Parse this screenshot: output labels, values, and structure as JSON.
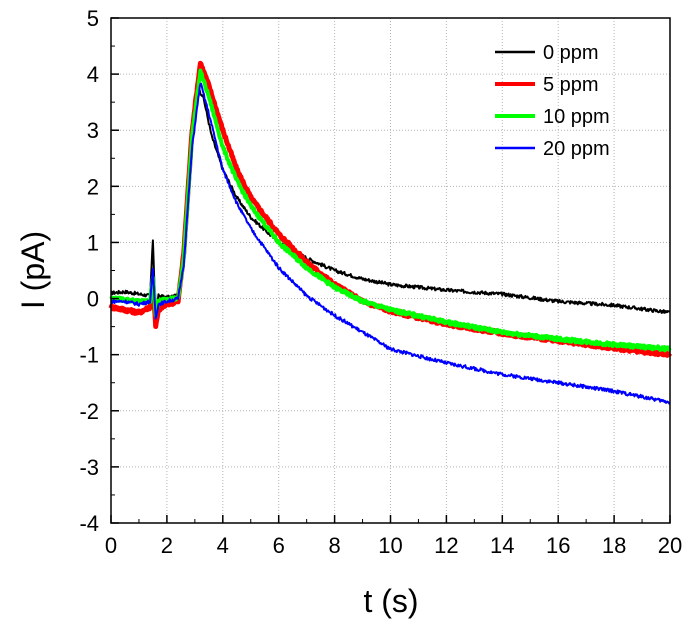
{
  "chart_data": {
    "type": "line",
    "xlabel": "t (s)",
    "ylabel": "I (pA)",
    "xlim": [
      0,
      20
    ],
    "ylim": [
      -4,
      5
    ],
    "xticks": [
      "0",
      "2",
      "4",
      "6",
      "8",
      "10",
      "12",
      "14",
      "16",
      "18",
      "20"
    ],
    "yticks": [
      "-4",
      "-3",
      "-2",
      "-1",
      "0",
      "1",
      "2",
      "3",
      "4",
      "5"
    ],
    "grid": true,
    "legend_position": "top-right",
    "series": [
      {
        "name": "0 ppm",
        "color": "#000000",
        "points": [
          [
            0,
            0.1
          ],
          [
            0.5,
            0.12
          ],
          [
            1.0,
            0.08
          ],
          [
            1.4,
            0.05
          ],
          [
            1.5,
            1.05
          ],
          [
            1.6,
            -0.4
          ],
          [
            1.7,
            0.05
          ],
          [
            2.0,
            0.02
          ],
          [
            2.4,
            0.05
          ],
          [
            2.6,
            0.8
          ],
          [
            2.9,
            3.0
          ],
          [
            3.1,
            3.75
          ],
          [
            3.3,
            3.6
          ],
          [
            3.6,
            2.9
          ],
          [
            4.0,
            2.3
          ],
          [
            4.5,
            1.8
          ],
          [
            5.0,
            1.45
          ],
          [
            6.0,
            1.0
          ],
          [
            7.0,
            0.72
          ],
          [
            8.0,
            0.5
          ],
          [
            9.0,
            0.35
          ],
          [
            10.0,
            0.25
          ],
          [
            12.0,
            0.15
          ],
          [
            14.0,
            0.08
          ],
          [
            16.0,
            -0.05
          ],
          [
            18.0,
            -0.12
          ],
          [
            20.0,
            -0.25
          ]
        ]
      },
      {
        "name": "5 ppm",
        "color": "#ff0000",
        "points": [
          [
            0,
            -0.15
          ],
          [
            0.5,
            -0.2
          ],
          [
            1.0,
            -0.25
          ],
          [
            1.4,
            -0.15
          ],
          [
            1.5,
            0.3
          ],
          [
            1.6,
            -0.5
          ],
          [
            1.7,
            -0.2
          ],
          [
            2.0,
            -0.1
          ],
          [
            2.4,
            -0.05
          ],
          [
            2.6,
            0.8
          ],
          [
            2.9,
            3.0
          ],
          [
            3.2,
            4.2
          ],
          [
            3.5,
            3.8
          ],
          [
            4.0,
            3.0
          ],
          [
            4.5,
            2.3
          ],
          [
            5.0,
            1.8
          ],
          [
            6.0,
            1.15
          ],
          [
            7.0,
            0.65
          ],
          [
            8.0,
            0.25
          ],
          [
            9.0,
            -0.05
          ],
          [
            10.0,
            -0.22
          ],
          [
            12.0,
            -0.45
          ],
          [
            14.0,
            -0.62
          ],
          [
            16.0,
            -0.75
          ],
          [
            18.0,
            -0.88
          ],
          [
            20.0,
            -1.0
          ]
        ]
      },
      {
        "name": "10 ppm",
        "color": "#00ff00",
        "points": [
          [
            0,
            0.0
          ],
          [
            0.5,
            -0.02
          ],
          [
            1.0,
            -0.05
          ],
          [
            1.4,
            -0.05
          ],
          [
            1.5,
            0.4
          ],
          [
            1.6,
            -0.3
          ],
          [
            1.7,
            -0.05
          ],
          [
            2.0,
            0.0
          ],
          [
            2.4,
            0.0
          ],
          [
            2.6,
            0.7
          ],
          [
            2.9,
            2.9
          ],
          [
            3.2,
            4.05
          ],
          [
            3.5,
            3.6
          ],
          [
            4.0,
            2.7
          ],
          [
            4.5,
            2.1
          ],
          [
            5.0,
            1.65
          ],
          [
            6.0,
            1.0
          ],
          [
            7.0,
            0.55
          ],
          [
            8.0,
            0.2
          ],
          [
            9.0,
            -0.05
          ],
          [
            10.0,
            -0.2
          ],
          [
            12.0,
            -0.42
          ],
          [
            14.0,
            -0.6
          ],
          [
            16.0,
            -0.72
          ],
          [
            18.0,
            -0.82
          ],
          [
            20.0,
            -0.9
          ]
        ]
      },
      {
        "name": "20 ppm",
        "color": "#0000ff",
        "points": [
          [
            0,
            -0.05
          ],
          [
            0.5,
            -0.05
          ],
          [
            1.0,
            -0.1
          ],
          [
            1.4,
            -0.05
          ],
          [
            1.5,
            0.5
          ],
          [
            1.6,
            -0.35
          ],
          [
            1.7,
            -0.1
          ],
          [
            2.0,
            -0.05
          ],
          [
            2.4,
            0.0
          ],
          [
            2.6,
            0.6
          ],
          [
            2.9,
            2.7
          ],
          [
            3.2,
            3.85
          ],
          [
            3.5,
            3.3
          ],
          [
            4.0,
            2.3
          ],
          [
            4.5,
            1.7
          ],
          [
            5.0,
            1.25
          ],
          [
            6.0,
            0.55
          ],
          [
            7.0,
            0.05
          ],
          [
            8.0,
            -0.3
          ],
          [
            9.0,
            -0.6
          ],
          [
            10.0,
            -0.9
          ],
          [
            12.0,
            -1.15
          ],
          [
            14.0,
            -1.35
          ],
          [
            16.0,
            -1.5
          ],
          [
            18.0,
            -1.65
          ],
          [
            20.0,
            -1.85
          ]
        ]
      }
    ]
  }
}
